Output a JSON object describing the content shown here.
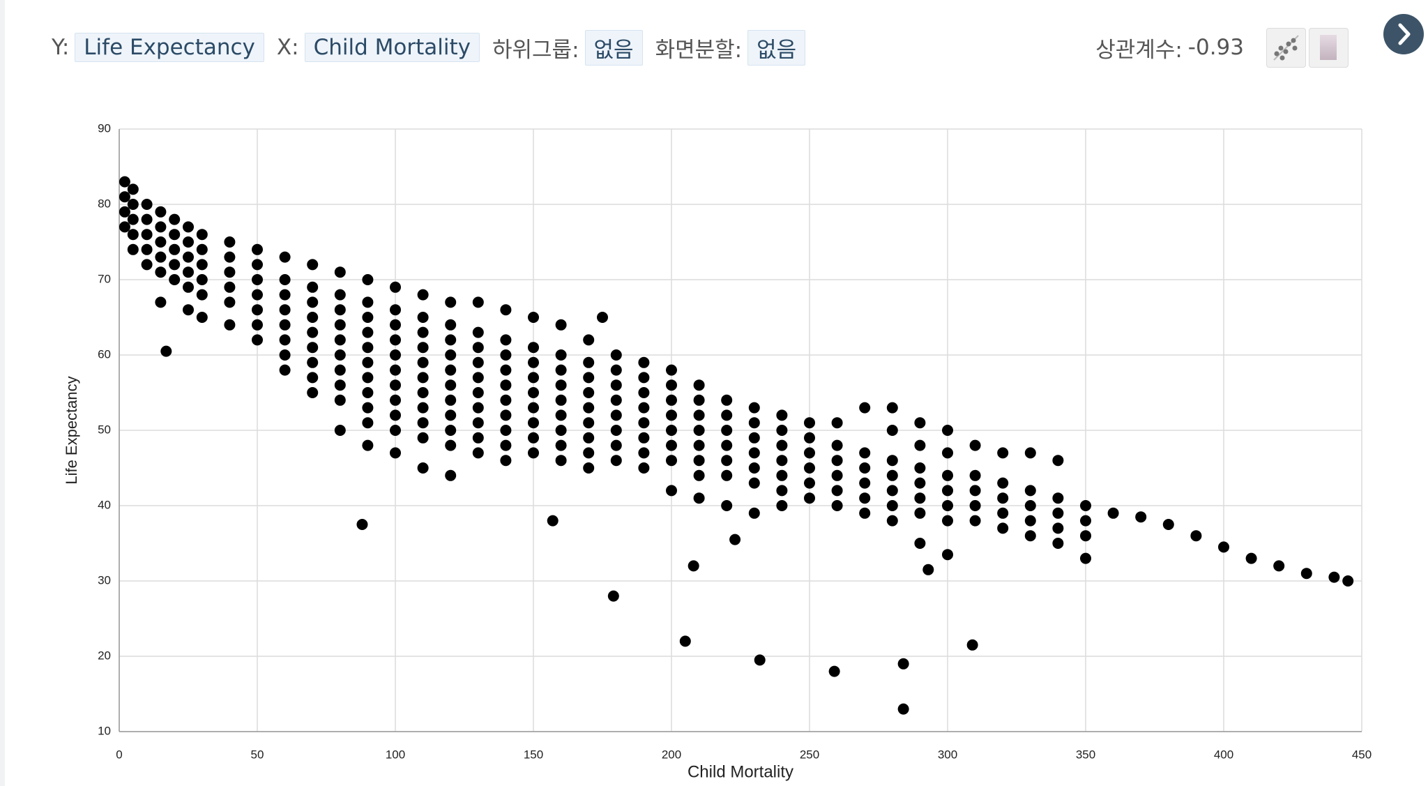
{
  "toolbar": {
    "y_label": "Y:",
    "y_value": "Life Expectancy",
    "x_label": "X:",
    "x_value": "Child Mortality",
    "subgroup_label": "하위그룹:",
    "subgroup_value": "없음",
    "split_label": "화면분할:",
    "split_value": "없음",
    "correlation_label": "상관계수:",
    "correlation": -0.93
  },
  "chart_data": {
    "type": "scatter",
    "x_label": "Child Mortality",
    "y_label": "Life Expectancy",
    "color": "#000000",
    "grid": true,
    "xlim": [
      0,
      450
    ],
    "ylim": [
      10,
      90
    ],
    "xticks": [
      0,
      50,
      100,
      150,
      200,
      250,
      300,
      350,
      400,
      450
    ],
    "yticks": [
      10,
      20,
      30,
      40,
      50,
      60,
      70,
      80,
      90
    ],
    "x": [
      2,
      2,
      2,
      2,
      5,
      5,
      5,
      5,
      5,
      10,
      10,
      10,
      10,
      10,
      15,
      15,
      15,
      15,
      15,
      15,
      20,
      20,
      20,
      20,
      20,
      25,
      25,
      25,
      25,
      25,
      25,
      30,
      30,
      30,
      30,
      30,
      30,
      40,
      40,
      40,
      40,
      40,
      40,
      50,
      50,
      50,
      50,
      50,
      50,
      50,
      60,
      60,
      60,
      60,
      60,
      60,
      60,
      60,
      70,
      70,
      70,
      70,
      70,
      70,
      70,
      70,
      70,
      80,
      80,
      80,
      80,
      80,
      80,
      80,
      80,
      80,
      80,
      90,
      90,
      90,
      90,
      90,
      90,
      90,
      90,
      90,
      90,
      90,
      100,
      100,
      100,
      100,
      100,
      100,
      100,
      100,
      100,
      100,
      100,
      110,
      110,
      110,
      110,
      110,
      110,
      110,
      110,
      110,
      110,
      110,
      120,
      120,
      120,
      120,
      120,
      120,
      120,
      120,
      120,
      120,
      120,
      130,
      130,
      130,
      130,
      130,
      130,
      130,
      130,
      130,
      130,
      140,
      140,
      140,
      140,
      140,
      140,
      140,
      140,
      140,
      140,
      150,
      150,
      150,
      150,
      150,
      150,
      150,
      150,
      150,
      160,
      160,
      160,
      160,
      160,
      160,
      160,
      160,
      160,
      170,
      170,
      170,
      170,
      170,
      170,
      170,
      170,
      170,
      180,
      180,
      180,
      180,
      180,
      180,
      180,
      180,
      190,
      190,
      190,
      190,
      190,
      190,
      190,
      190,
      200,
      200,
      200,
      200,
      200,
      200,
      200,
      200,
      210,
      210,
      210,
      210,
      210,
      210,
      210,
      210,
      220,
      220,
      220,
      220,
      220,
      220,
      220,
      230,
      230,
      230,
      230,
      230,
      230,
      230,
      240,
      240,
      240,
      240,
      240,
      240,
      240,
      250,
      250,
      250,
      250,
      250,
      250,
      260,
      260,
      260,
      260,
      260,
      260,
      270,
      270,
      270,
      270,
      270,
      270,
      280,
      280,
      280,
      280,
      280,
      280,
      280,
      290,
      290,
      290,
      290,
      290,
      290,
      300,
      300,
      300,
      300,
      300,
      300,
      310,
      310,
      310,
      310,
      310,
      320,
      320,
      320,
      320,
      320,
      330,
      330,
      330,
      330,
      330,
      340,
      340,
      340,
      340,
      340,
      350,
      350,
      350,
      350,
      360,
      370,
      380,
      390,
      400,
      410,
      420,
      430,
      440,
      445,
      175,
      17,
      88,
      157,
      179,
      205,
      208,
      223,
      232,
      259,
      284,
      284,
      290,
      293,
      300,
      309
    ],
    "values": [
      83,
      81,
      79,
      77,
      82,
      80,
      78,
      76,
      74,
      80,
      78,
      76,
      74,
      72,
      79,
      77,
      75,
      73,
      71,
      67,
      78,
      76,
      74,
      72,
      70,
      77,
      75,
      73,
      71,
      69,
      66,
      76,
      74,
      72,
      70,
      68,
      65,
      75,
      73,
      71,
      69,
      67,
      64,
      74,
      72,
      70,
      68,
      66,
      64,
      62,
      73,
      70,
      68,
      66,
      64,
      62,
      60,
      58,
      72,
      69,
      67,
      65,
      63,
      61,
      59,
      57,
      55,
      71,
      68,
      66,
      64,
      62,
      60,
      58,
      56,
      54,
      50,
      70,
      67,
      65,
      63,
      61,
      59,
      57,
      55,
      53,
      51,
      48,
      69,
      66,
      64,
      62,
      60,
      58,
      56,
      54,
      52,
      50,
      47,
      68,
      65,
      63,
      61,
      59,
      57,
      55,
      53,
      51,
      49,
      45,
      67,
      64,
      62,
      60,
      58,
      56,
      54,
      52,
      50,
      48,
      44,
      67,
      63,
      61,
      59,
      57,
      55,
      53,
      51,
      49,
      47,
      66,
      62,
      60,
      58,
      56,
      54,
      52,
      50,
      48,
      46,
      65,
      61,
      59,
      57,
      55,
      53,
      51,
      49,
      47,
      64,
      60,
      58,
      56,
      54,
      52,
      50,
      48,
      46,
      62,
      59,
      57,
      55,
      53,
      51,
      49,
      47,
      45,
      60,
      58,
      56,
      54,
      52,
      50,
      48,
      46,
      59,
      57,
      55,
      53,
      51,
      49,
      47,
      45,
      58,
      56,
      54,
      52,
      50,
      48,
      46,
      42,
      56,
      54,
      52,
      50,
      48,
      46,
      44,
      41,
      54,
      52,
      50,
      48,
      46,
      44,
      40,
      53,
      51,
      49,
      47,
      45,
      43,
      39,
      52,
      50,
      48,
      46,
      44,
      42,
      40,
      51,
      49,
      47,
      45,
      43,
      41,
      51,
      48,
      46,
      44,
      42,
      40,
      53,
      47,
      45,
      43,
      41,
      39,
      53,
      50,
      46,
      44,
      42,
      40,
      38,
      51,
      48,
      45,
      43,
      41,
      39,
      50,
      47,
      44,
      42,
      40,
      38,
      48,
      44,
      42,
      40,
      38,
      47,
      43,
      41,
      39,
      37,
      47,
      42,
      40,
      38,
      36,
      46,
      41,
      39,
      37,
      35,
      40,
      38,
      36,
      33,
      39,
      38.5,
      37.5,
      36,
      34.5,
      33,
      32,
      31,
      30.5,
      30,
      65,
      60.5,
      37.5,
      38,
      28,
      22,
      32,
      35.5,
      19.5,
      18,
      19,
      13,
      35,
      31.5,
      33.5,
      21.5
    ]
  }
}
